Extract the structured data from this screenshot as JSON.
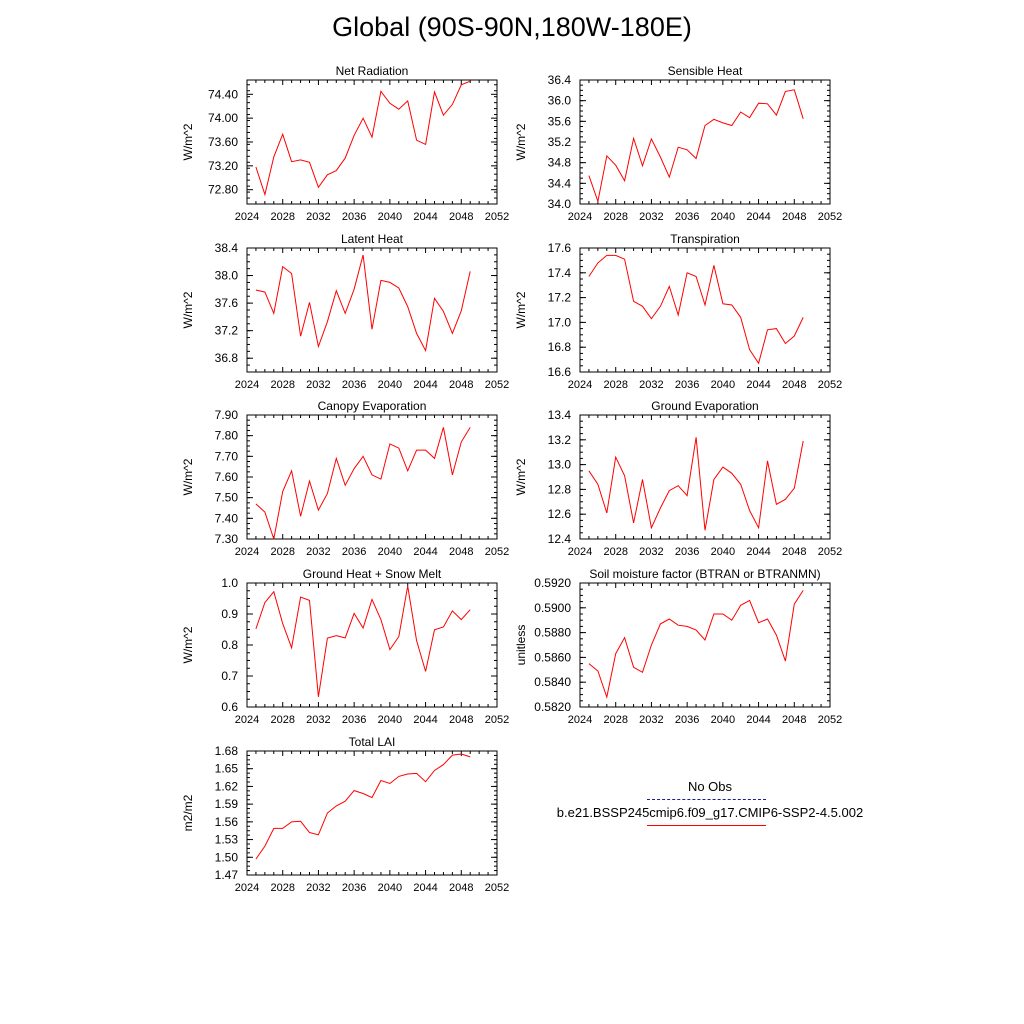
{
  "title": "Global (90S-90N,180W-180E)",
  "legend": {
    "entries": [
      {
        "label": "No Obs",
        "color": "#1a1aa0",
        "style": "dashed"
      },
      {
        "label": "b.e21.BSSP245cmip6.f09_g17.CMIP6-SSP2-4.5.002",
        "color": "#ff0000",
        "style": "solid"
      }
    ]
  },
  "chart_data": [
    {
      "type": "line",
      "title": "Net Radiation",
      "ylabel": "W/m^2",
      "xlim": [
        2024,
        2052
      ],
      "xticks": [
        "2024",
        "2028",
        "2032",
        "2036",
        "2040",
        "2044",
        "2048",
        "2052"
      ],
      "ylim": [
        72.56,
        74.64
      ],
      "yticks": [
        72.8,
        73.2,
        73.6,
        74.0,
        74.4
      ],
      "ytick_labels": [
        "72.80",
        "73.20",
        "73.60",
        "74.00",
        "74.40"
      ],
      "series": [
        {
          "name": "b.e21.BSSP245cmip6.f09_g17.CMIP6-SSP2-4.5.002",
          "color": "#ff0000",
          "x": [
            2025,
            2026,
            2027,
            2028,
            2029,
            2030,
            2031,
            2032,
            2033,
            2034,
            2035,
            2036,
            2037,
            2038,
            2039,
            2040,
            2041,
            2042,
            2043,
            2044,
            2045,
            2046,
            2047,
            2048,
            2049
          ],
          "y": [
            73.18,
            72.72,
            73.35,
            73.73,
            73.27,
            73.3,
            73.26,
            72.84,
            73.05,
            73.12,
            73.33,
            73.71,
            74.0,
            73.68,
            74.45,
            74.25,
            74.15,
            74.29,
            73.63,
            73.56,
            74.44,
            74.05,
            74.23,
            74.56,
            74.62
          ]
        }
      ]
    },
    {
      "type": "line",
      "title": "Sensible Heat",
      "ylabel": "W/m^2",
      "xlim": [
        2024,
        2052
      ],
      "xticks": [
        "2024",
        "2028",
        "2032",
        "2036",
        "2040",
        "2044",
        "2048",
        "2052"
      ],
      "ylim": [
        34.0,
        36.4
      ],
      "yticks": [
        34.0,
        34.4,
        34.8,
        35.2,
        35.6,
        36.0,
        36.4
      ],
      "ytick_labels": [
        "34.0",
        "34.4",
        "34.8",
        "35.2",
        "35.6",
        "36.0",
        "36.4"
      ],
      "series": [
        {
          "name": "b.e21.BSSP245cmip6.f09_g17.CMIP6-SSP2-4.5.002",
          "color": "#ff0000",
          "x": [
            2025,
            2026,
            2027,
            2028,
            2029,
            2030,
            2031,
            2032,
            2033,
            2034,
            2035,
            2036,
            2037,
            2038,
            2039,
            2040,
            2041,
            2042,
            2043,
            2044,
            2045,
            2046,
            2047,
            2048,
            2049
          ],
          "y": [
            34.55,
            34.05,
            34.93,
            34.75,
            34.45,
            35.27,
            34.74,
            35.26,
            34.91,
            34.52,
            35.1,
            35.05,
            34.88,
            35.52,
            35.64,
            35.57,
            35.52,
            35.78,
            35.67,
            35.95,
            35.94,
            35.72,
            36.18,
            36.21,
            35.65
          ]
        }
      ]
    },
    {
      "type": "line",
      "title": "Latent Heat",
      "ylabel": "W/m^2",
      "xlim": [
        2024,
        2052
      ],
      "xticks": [
        "2024",
        "2028",
        "2032",
        "2036",
        "2040",
        "2044",
        "2048",
        "2052"
      ],
      "ylim": [
        36.6,
        38.4
      ],
      "yticks": [
        36.8,
        37.2,
        37.6,
        38.0,
        38.4
      ],
      "ytick_labels": [
        "36.8",
        "37.2",
        "37.6",
        "38.0",
        "38.4"
      ],
      "series": [
        {
          "name": "b.e21.BSSP245cmip6.f09_g17.CMIP6-SSP2-4.5.002",
          "color": "#ff0000",
          "x": [
            2025,
            2026,
            2027,
            2028,
            2029,
            2030,
            2031,
            2032,
            2033,
            2034,
            2035,
            2036,
            2037,
            2038,
            2039,
            2040,
            2041,
            2042,
            2043,
            2044,
            2045,
            2046,
            2047,
            2048,
            2049
          ],
          "y": [
            37.79,
            37.76,
            37.45,
            38.13,
            38.03,
            37.12,
            37.61,
            36.97,
            37.33,
            37.78,
            37.45,
            37.8,
            38.3,
            37.22,
            37.93,
            37.9,
            37.82,
            37.55,
            37.16,
            36.91,
            37.67,
            37.48,
            37.16,
            37.49,
            38.06
          ]
        }
      ]
    },
    {
      "type": "line",
      "title": "Transpiration",
      "ylabel": "W/m^2",
      "xlim": [
        2024,
        2052
      ],
      "xticks": [
        "2024",
        "2028",
        "2032",
        "2036",
        "2040",
        "2044",
        "2048",
        "2052"
      ],
      "ylim": [
        16.6,
        17.6
      ],
      "yticks": [
        16.6,
        16.8,
        17.0,
        17.2,
        17.4,
        17.6
      ],
      "ytick_labels": [
        "16.6",
        "16.8",
        "17.0",
        "17.2",
        "17.4",
        "17.6"
      ],
      "series": [
        {
          "name": "b.e21.BSSP245cmip6.f09_g17.CMIP6-SSP2-4.5.002",
          "color": "#ff0000",
          "x": [
            2025,
            2026,
            2027,
            2028,
            2029,
            2030,
            2031,
            2032,
            2033,
            2034,
            2035,
            2036,
            2037,
            2038,
            2039,
            2040,
            2041,
            2042,
            2043,
            2044,
            2045,
            2046,
            2047,
            2048,
            2049
          ],
          "y": [
            17.37,
            17.48,
            17.54,
            17.54,
            17.51,
            17.17,
            17.13,
            17.03,
            17.13,
            17.29,
            17.06,
            17.4,
            17.37,
            17.14,
            17.46,
            17.15,
            17.14,
            17.04,
            16.78,
            16.67,
            16.94,
            16.95,
            16.83,
            16.89,
            17.04
          ]
        }
      ]
    },
    {
      "type": "line",
      "title": "Canopy Evaporation",
      "ylabel": "W/m^2",
      "xlim": [
        2024,
        2052
      ],
      "xticks": [
        "2024",
        "2028",
        "2032",
        "2036",
        "2040",
        "2044",
        "2048",
        "2052"
      ],
      "ylim": [
        7.3,
        7.9
      ],
      "yticks": [
        7.3,
        7.4,
        7.5,
        7.6,
        7.7,
        7.8,
        7.9
      ],
      "ytick_labels": [
        "7.30",
        "7.40",
        "7.50",
        "7.60",
        "7.70",
        "7.80",
        "7.90"
      ],
      "series": [
        {
          "name": "b.e21.BSSP245cmip6.f09_g17.CMIP6-SSP2-4.5.002",
          "color": "#ff0000",
          "x": [
            2025,
            2026,
            2027,
            2028,
            2029,
            2030,
            2031,
            2032,
            2033,
            2034,
            2035,
            2036,
            2037,
            2038,
            2039,
            2040,
            2041,
            2042,
            2043,
            2044,
            2045,
            2046,
            2047,
            2048,
            2049
          ],
          "y": [
            7.47,
            7.43,
            7.3,
            7.53,
            7.63,
            7.41,
            7.58,
            7.44,
            7.52,
            7.69,
            7.56,
            7.64,
            7.7,
            7.61,
            7.59,
            7.76,
            7.74,
            7.63,
            7.73,
            7.73,
            7.69,
            7.84,
            7.61,
            7.77,
            7.84
          ]
        }
      ]
    },
    {
      "type": "line",
      "title": "Ground Evaporation",
      "ylabel": "W/m^2",
      "xlim": [
        2024,
        2052
      ],
      "xticks": [
        "2024",
        "2028",
        "2032",
        "2036",
        "2040",
        "2044",
        "2048",
        "2052"
      ],
      "ylim": [
        12.4,
        13.4
      ],
      "yticks": [
        12.4,
        12.6,
        12.8,
        13.0,
        13.2,
        13.4
      ],
      "ytick_labels": [
        "12.4",
        "12.6",
        "12.8",
        "13.0",
        "13.2",
        "13.4"
      ],
      "series": [
        {
          "name": "b.e21.BSSP245cmip6.f09_g17.CMIP6-SSP2-4.5.002",
          "color": "#ff0000",
          "x": [
            2025,
            2026,
            2027,
            2028,
            2029,
            2030,
            2031,
            2032,
            2033,
            2034,
            2035,
            2036,
            2037,
            2038,
            2039,
            2040,
            2041,
            2042,
            2043,
            2044,
            2045,
            2046,
            2047,
            2048,
            2049
          ],
          "y": [
            12.95,
            12.84,
            12.61,
            13.06,
            12.91,
            12.53,
            12.88,
            12.49,
            12.65,
            12.79,
            12.83,
            12.75,
            13.22,
            12.47,
            12.88,
            12.98,
            12.93,
            12.84,
            12.63,
            12.49,
            13.03,
            12.68,
            12.72,
            12.81,
            13.19
          ]
        }
      ]
    },
    {
      "type": "line",
      "title": "Ground Heat + Snow Melt",
      "ylabel": "W/m^2",
      "xlim": [
        2024,
        2052
      ],
      "xticks": [
        "2024",
        "2028",
        "2032",
        "2036",
        "2040",
        "2044",
        "2048",
        "2052"
      ],
      "ylim": [
        0.6,
        1.0
      ],
      "yticks": [
        0.6,
        0.7,
        0.8,
        0.9,
        1.0
      ],
      "ytick_labels": [
        "0.6",
        "0.7",
        "0.8",
        "0.9",
        "1.0"
      ],
      "series": [
        {
          "name": "b.e21.BSSP245cmip6.f09_g17.CMIP6-SSP2-4.5.002",
          "color": "#ff0000",
          "x": [
            2025,
            2026,
            2027,
            2028,
            2029,
            2030,
            2031,
            2032,
            2033,
            2034,
            2035,
            2036,
            2037,
            2038,
            2039,
            2040,
            2041,
            2042,
            2043,
            2044,
            2045,
            2046,
            2047,
            2048,
            2049
          ],
          "y": [
            0.852,
            0.937,
            0.972,
            0.869,
            0.791,
            0.955,
            0.944,
            0.633,
            0.822,
            0.83,
            0.823,
            0.902,
            0.855,
            0.947,
            0.882,
            0.785,
            0.827,
            0.99,
            0.814,
            0.715,
            0.849,
            0.858,
            0.91,
            0.882,
            0.914
          ]
        }
      ]
    },
    {
      "type": "line",
      "title": "Soil moisture factor (BTRAN or BTRANMN)",
      "ylabel": "unitless",
      "xlim": [
        2024,
        2052
      ],
      "xticks": [
        "2024",
        "2028",
        "2032",
        "2036",
        "2040",
        "2044",
        "2048",
        "2052"
      ],
      "ylim": [
        0.582,
        0.592
      ],
      "yticks": [
        0.582,
        0.584,
        0.586,
        0.588,
        0.59,
        0.592
      ],
      "ytick_labels": [
        "0.5820",
        "0.5840",
        "0.5860",
        "0.5880",
        "0.5900",
        "0.5920"
      ],
      "series": [
        {
          "name": "b.e21.BSSP245cmip6.f09_g17.CMIP6-SSP2-4.5.002",
          "color": "#ff0000",
          "x": [
            2025,
            2026,
            2027,
            2028,
            2029,
            2030,
            2031,
            2032,
            2033,
            2034,
            2035,
            2036,
            2037,
            2038,
            2039,
            2040,
            2041,
            2042,
            2043,
            2044,
            2045,
            2046,
            2047,
            2048,
            2049
          ],
          "y": [
            0.5855,
            0.5849,
            0.5828,
            0.5863,
            0.5876,
            0.5852,
            0.5848,
            0.587,
            0.5887,
            0.5891,
            0.5886,
            0.5885,
            0.5882,
            0.5874,
            0.5895,
            0.5895,
            0.589,
            0.5902,
            0.5906,
            0.5888,
            0.5891,
            0.5878,
            0.5857,
            0.5903,
            0.5914
          ]
        }
      ]
    },
    {
      "type": "line",
      "title": "Total LAI",
      "ylabel": "m2/m2",
      "xlim": [
        2024,
        2052
      ],
      "xticks": [
        "2024",
        "2028",
        "2032",
        "2036",
        "2040",
        "2044",
        "2048",
        "2052"
      ],
      "ylim": [
        1.47,
        1.68
      ],
      "yticks": [
        1.47,
        1.5,
        1.53,
        1.56,
        1.59,
        1.62,
        1.65,
        1.68
      ],
      "ytick_labels": [
        "1.47",
        "1.50",
        "1.53",
        "1.56",
        "1.59",
        "1.62",
        "1.65",
        "1.68"
      ],
      "series": [
        {
          "name": "b.e21.BSSP245cmip6.f09_g17.CMIP6-SSP2-4.5.002",
          "color": "#ff0000",
          "x": [
            2025,
            2026,
            2027,
            2028,
            2029,
            2030,
            2031,
            2032,
            2033,
            2034,
            2035,
            2036,
            2037,
            2038,
            2039,
            2040,
            2041,
            2042,
            2043,
            2044,
            2045,
            2046,
            2047,
            2048,
            2049
          ],
          "y": [
            1.497,
            1.519,
            1.549,
            1.549,
            1.56,
            1.561,
            1.542,
            1.538,
            1.575,
            1.587,
            1.595,
            1.613,
            1.608,
            1.601,
            1.63,
            1.625,
            1.637,
            1.641,
            1.642,
            1.628,
            1.647,
            1.657,
            1.673,
            1.675,
            1.67
          ]
        }
      ]
    }
  ]
}
